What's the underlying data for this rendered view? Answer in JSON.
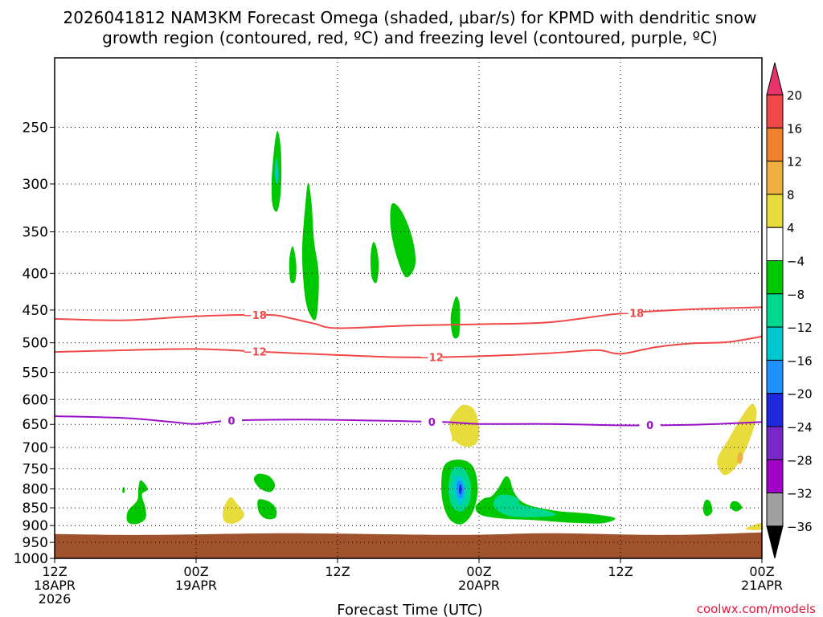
{
  "chart_data": {
    "type": "time-height cross section",
    "title_line1": "2026041812 NAM3KM Forecast Omega (shaded, μbar/s) for KPMD with dendritic snow",
    "title_line2": "growth region (contoured, red, ºC) and freezing level (contoured, purple, ºC)",
    "xlabel": "Forecast Time (UTC)",
    "ylabel": "",
    "credit": "coolwx.com/models",
    "x_hours_range": [
      0,
      60
    ],
    "y_pressure_range": [
      1000,
      200
    ],
    "y_ticks": [
      250,
      300,
      350,
      400,
      450,
      500,
      550,
      600,
      650,
      700,
      750,
      800,
      850,
      900,
      950,
      1000
    ],
    "x_ticks": [
      {
        "hour": 0,
        "lines": [
          "12Z",
          "18APR",
          "2026"
        ]
      },
      {
        "hour": 12,
        "lines": [
          "00Z",
          "19APR"
        ]
      },
      {
        "hour": 24,
        "lines": [
          "12Z"
        ]
      },
      {
        "hour": 36,
        "lines": [
          "00Z",
          "20APR"
        ]
      },
      {
        "hour": 48,
        "lines": [
          "12Z"
        ]
      },
      {
        "hour": 60,
        "lines": [
          "00Z",
          "21APR"
        ]
      }
    ],
    "colorbar": {
      "labels": [
        "20",
        "16",
        "12",
        "8",
        "4",
        "-4",
        "-8",
        "-12",
        "-16",
        "-20",
        "-24",
        "-28",
        "-32",
        "-36"
      ],
      "colors": [
        "#e8336a",
        "#f04848",
        "#f08030",
        "#f0b040",
        "#e8dc3c",
        "#ffffff",
        "#00c800",
        "#00d890",
        "#00c8d0",
        "#1e90ff",
        "#1e28dc",
        "#7828c8",
        "#a000c8",
        "#a0a0a0",
        "#000000"
      ]
    },
    "contours": [
      {
        "name": "-18",
        "color": "#f04848",
        "points": [
          [
            0,
            463
          ],
          [
            6,
            465
          ],
          [
            12,
            459
          ],
          [
            18,
            457
          ],
          [
            20,
            462
          ],
          [
            22,
            470
          ],
          [
            24,
            477
          ],
          [
            30,
            473
          ],
          [
            36,
            471
          ],
          [
            42,
            468
          ],
          [
            48,
            455
          ],
          [
            54,
            449
          ],
          [
            60,
            446
          ]
        ],
        "labels_at": [
          17,
          49
        ]
      },
      {
        "name": "-12",
        "color": "#f04848",
        "points": [
          [
            0,
            515
          ],
          [
            6,
            512
          ],
          [
            12,
            510
          ],
          [
            18,
            515
          ],
          [
            24,
            520
          ],
          [
            30,
            524
          ],
          [
            36,
            522
          ],
          [
            42,
            517
          ],
          [
            46,
            512
          ],
          [
            48,
            518
          ],
          [
            51,
            507
          ],
          [
            54,
            501
          ],
          [
            57,
            499
          ],
          [
            60,
            490
          ]
        ],
        "labels_at": [
          17,
          32
        ]
      },
      {
        "name": "0",
        "color": "#9a10c8",
        "points": [
          [
            0,
            633
          ],
          [
            6,
            637
          ],
          [
            10,
            645
          ],
          [
            12,
            649
          ],
          [
            15,
            642
          ],
          [
            21,
            640
          ],
          [
            27,
            642
          ],
          [
            33,
            645
          ],
          [
            36,
            649
          ],
          [
            42,
            649
          ],
          [
            48,
            652
          ],
          [
            54,
            651
          ],
          [
            60,
            645
          ]
        ],
        "labels_at": [
          15,
          32,
          50.5
        ]
      }
    ],
    "ground_pressure": 925,
    "omega_regions": [
      {
        "value": -6,
        "points": [
          [
            18.9,
            253
          ],
          [
            18.6,
            270
          ],
          [
            18.4,
            300
          ],
          [
            18.5,
            322
          ],
          [
            18.9,
            327
          ],
          [
            19.2,
            305
          ],
          [
            19.2,
            270
          ]
        ]
      },
      {
        "value": -12,
        "points": [
          [
            18.8,
            275
          ],
          [
            18.7,
            293
          ],
          [
            18.9,
            300
          ],
          [
            19.0,
            290
          ]
        ]
      },
      {
        "value": -6,
        "points": [
          [
            21.5,
            299
          ],
          [
            21.2,
            330
          ],
          [
            21.0,
            370
          ],
          [
            21.1,
            410
          ],
          [
            21.4,
            445
          ],
          [
            22.0,
            465
          ],
          [
            22.3,
            450
          ],
          [
            22.4,
            400
          ],
          [
            22.0,
            360
          ],
          [
            21.8,
            320
          ]
        ]
      },
      {
        "value": -6,
        "points": [
          [
            20.1,
            368
          ],
          [
            19.9,
            385
          ],
          [
            20.0,
            410
          ],
          [
            20.4,
            410
          ],
          [
            20.5,
            390
          ],
          [
            20.3,
            370
          ]
        ]
      },
      {
        "value": -6,
        "points": [
          [
            27.0,
            362
          ],
          [
            26.8,
            380
          ],
          [
            26.9,
            405
          ],
          [
            27.3,
            412
          ],
          [
            27.5,
            390
          ],
          [
            27.3,
            368
          ]
        ]
      },
      {
        "value": -6,
        "points": [
          [
            28.6,
            320
          ],
          [
            28.5,
            345
          ],
          [
            29.0,
            378
          ],
          [
            29.8,
            405
          ],
          [
            30.6,
            388
          ],
          [
            30.3,
            355
          ],
          [
            29.4,
            327
          ]
        ]
      },
      {
        "value": -6,
        "points": [
          [
            34.0,
            432
          ],
          [
            33.6,
            460
          ],
          [
            33.8,
            490
          ],
          [
            34.3,
            488
          ],
          [
            34.4,
            455
          ],
          [
            34.3,
            437
          ]
        ]
      },
      {
        "value": 6,
        "points": [
          [
            34.2,
            618
          ],
          [
            33.5,
            645
          ],
          [
            33.8,
            680
          ],
          [
            34.8,
            698
          ],
          [
            35.8,
            690
          ],
          [
            36.0,
            655
          ],
          [
            35.6,
            620
          ],
          [
            34.8,
            610
          ]
        ]
      },
      {
        "value": 6,
        "points": [
          [
            33.8,
            662
          ],
          [
            33.7,
            685
          ],
          [
            33.9,
            685
          ],
          [
            33.9,
            670
          ]
        ]
      },
      {
        "value": -6,
        "points": [
          [
            33.1,
            740
          ],
          [
            32.8,
            790
          ],
          [
            33.0,
            845
          ],
          [
            33.6,
            885
          ],
          [
            34.6,
            895
          ],
          [
            35.5,
            860
          ],
          [
            35.9,
            800
          ],
          [
            35.5,
            745
          ],
          [
            34.4,
            728
          ]
        ]
      },
      {
        "value": -10,
        "points": [
          [
            33.7,
            752
          ],
          [
            33.4,
            800
          ],
          [
            33.7,
            845
          ],
          [
            34.5,
            860
          ],
          [
            35.2,
            835
          ],
          [
            35.3,
            790
          ],
          [
            34.9,
            755
          ],
          [
            34.3,
            745
          ]
        ]
      },
      {
        "value": -14,
        "points": [
          [
            34.0,
            768
          ],
          [
            33.8,
            800
          ],
          [
            34.1,
            835
          ],
          [
            34.6,
            840
          ],
          [
            34.9,
            805
          ],
          [
            34.6,
            772
          ]
        ]
      },
      {
        "value": -18,
        "points": [
          [
            34.2,
            780
          ],
          [
            34.1,
            800
          ],
          [
            34.3,
            823
          ],
          [
            34.6,
            820
          ],
          [
            34.7,
            800
          ],
          [
            34.5,
            782
          ]
        ]
      },
      {
        "value": -22,
        "points": [
          [
            34.35,
            790
          ],
          [
            34.3,
            806
          ],
          [
            34.45,
            814
          ],
          [
            34.55,
            800
          ],
          [
            34.45,
            789
          ]
        ]
      },
      {
        "value": -6,
        "points": [
          [
            36.4,
            825
          ],
          [
            35.7,
            848
          ],
          [
            36.2,
            870
          ],
          [
            38.0,
            880
          ],
          [
            41.0,
            885
          ],
          [
            44.0,
            892
          ],
          [
            46.5,
            893
          ],
          [
            47.5,
            878
          ],
          [
            45.0,
            865
          ],
          [
            42.5,
            858
          ],
          [
            40.0,
            840
          ],
          [
            39.0,
            810
          ],
          [
            38.6,
            775
          ],
          [
            38.2,
            770
          ],
          [
            37.6,
            800
          ],
          [
            37.0,
            820
          ]
        ]
      },
      {
        "value": -10,
        "points": [
          [
            37.5,
            820
          ],
          [
            37.3,
            848
          ],
          [
            38.5,
            872
          ],
          [
            40.5,
            876
          ],
          [
            42.5,
            870
          ],
          [
            41.5,
            855
          ],
          [
            39.6,
            842
          ],
          [
            39.3,
            825
          ],
          [
            38.4,
            815
          ]
        ]
      },
      {
        "value": -6,
        "points": [
          [
            17.3,
            762
          ],
          [
            16.9,
            776
          ],
          [
            17.4,
            798
          ],
          [
            18.3,
            808
          ],
          [
            18.7,
            790
          ],
          [
            18.2,
            768
          ]
        ]
      },
      {
        "value": -6,
        "points": [
          [
            17.3,
            828
          ],
          [
            17.3,
            860
          ],
          [
            17.9,
            880
          ],
          [
            18.7,
            878
          ],
          [
            18.8,
            855
          ],
          [
            18.3,
            835
          ]
        ]
      },
      {
        "value": -6,
        "points": [
          [
            7.3,
            778
          ],
          [
            7.1,
            800
          ],
          [
            7.0,
            830
          ],
          [
            6.2,
            860
          ],
          [
            6.2,
            890
          ],
          [
            7.0,
            895
          ],
          [
            7.7,
            880
          ],
          [
            7.7,
            850
          ],
          [
            7.4,
            815
          ],
          [
            7.9,
            800
          ]
        ]
      },
      {
        "value": -6,
        "points": [
          [
            5.8,
            795
          ],
          [
            5.75,
            808
          ],
          [
            5.9,
            810
          ],
          [
            5.95,
            800
          ]
        ]
      },
      {
        "value": 6,
        "points": [
          [
            14.9,
            822
          ],
          [
            14.3,
            855
          ],
          [
            14.4,
            888
          ],
          [
            15.3,
            893
          ],
          [
            16.1,
            870
          ],
          [
            15.5,
            840
          ]
        ]
      },
      {
        "value": -6,
        "points": [
          [
            55.2,
            830
          ],
          [
            55.0,
            855
          ],
          [
            55.3,
            873
          ],
          [
            55.8,
            860
          ],
          [
            55.6,
            833
          ]
        ]
      },
      {
        "value": -6,
        "points": [
          [
            57.5,
            833
          ],
          [
            57.3,
            848
          ],
          [
            57.8,
            860
          ],
          [
            58.3,
            850
          ],
          [
            58.0,
            835
          ]
        ]
      },
      {
        "value": 6,
        "points": [
          [
            58.9,
            613
          ],
          [
            57.2,
            680
          ],
          [
            56.2,
            730
          ],
          [
            56.8,
            765
          ],
          [
            57.8,
            745
          ],
          [
            58.7,
            700
          ],
          [
            59.4,
            650
          ],
          [
            59.5,
            618
          ]
        ]
      },
      {
        "value": 10,
        "points": [
          [
            58.1,
            710
          ],
          [
            57.9,
            730
          ],
          [
            58.2,
            738
          ],
          [
            58.4,
            720
          ]
        ]
      },
      {
        "value": 6,
        "points": [
          [
            58.6,
            910
          ],
          [
            59.6,
            895
          ],
          [
            60.0,
            894
          ],
          [
            60.0,
            912
          ]
        ]
      }
    ]
  }
}
